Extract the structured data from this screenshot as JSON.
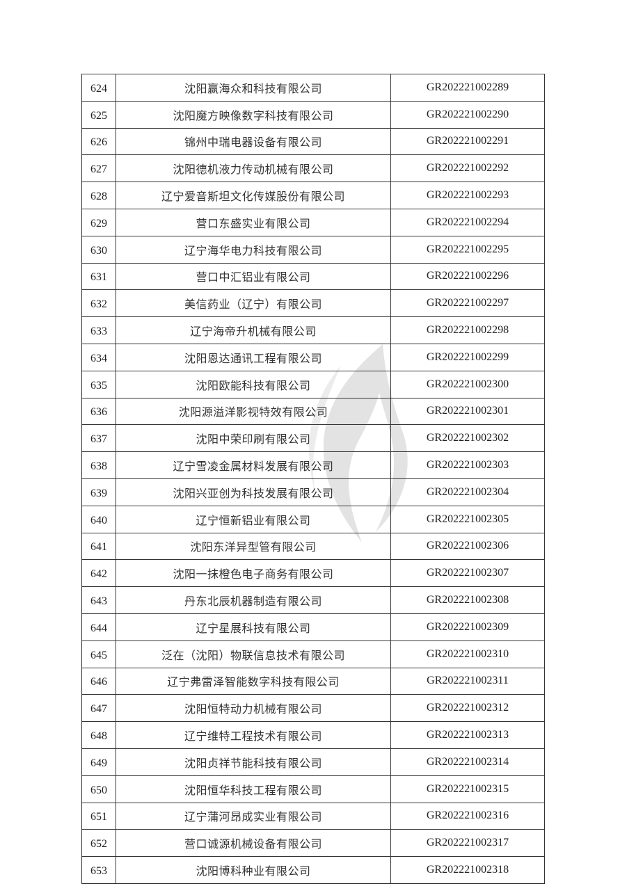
{
  "watermark": {
    "icon": "flame-logo-icon",
    "color": "#e3e3e3"
  },
  "table": {
    "rows": [
      {
        "no": "624",
        "name": "沈阳赢海众和科技有限公司",
        "code": "GR202221002289"
      },
      {
        "no": "625",
        "name": "沈阳魔方映像数字科技有限公司",
        "code": "GR202221002290"
      },
      {
        "no": "626",
        "name": "锦州中瑞电器设备有限公司",
        "code": "GR202221002291"
      },
      {
        "no": "627",
        "name": "沈阳德机液力传动机械有限公司",
        "code": "GR202221002292"
      },
      {
        "no": "628",
        "name": "辽宁爱音斯坦文化传媒股份有限公司",
        "code": "GR202221002293"
      },
      {
        "no": "629",
        "name": "营口东盛实业有限公司",
        "code": "GR202221002294"
      },
      {
        "no": "630",
        "name": "辽宁海华电力科技有限公司",
        "code": "GR202221002295"
      },
      {
        "no": "631",
        "name": "营口中汇铝业有限公司",
        "code": "GR202221002296"
      },
      {
        "no": "632",
        "name": "美信药业（辽宁）有限公司",
        "code": "GR202221002297"
      },
      {
        "no": "633",
        "name": "辽宁海帝升机械有限公司",
        "code": "GR202221002298"
      },
      {
        "no": "634",
        "name": "沈阳恩达通讯工程有限公司",
        "code": "GR202221002299"
      },
      {
        "no": "635",
        "name": "沈阳欧能科技有限公司",
        "code": "GR202221002300"
      },
      {
        "no": "636",
        "name": "沈阳源溢洋影视特效有限公司",
        "code": "GR202221002301"
      },
      {
        "no": "637",
        "name": "沈阳中荣印刷有限公司",
        "code": "GR202221002302"
      },
      {
        "no": "638",
        "name": "辽宁雪凌金属材料发展有限公司",
        "code": "GR202221002303"
      },
      {
        "no": "639",
        "name": "沈阳兴亚创为科技发展有限公司",
        "code": "GR202221002304"
      },
      {
        "no": "640",
        "name": "辽宁恒新铝业有限公司",
        "code": "GR202221002305"
      },
      {
        "no": "641",
        "name": "沈阳东洋异型管有限公司",
        "code": "GR202221002306"
      },
      {
        "no": "642",
        "name": "沈阳一抹橙色电子商务有限公司",
        "code": "GR202221002307"
      },
      {
        "no": "643",
        "name": "丹东北辰机器制造有限公司",
        "code": "GR202221002308"
      },
      {
        "no": "644",
        "name": "辽宁星展科技有限公司",
        "code": "GR202221002309"
      },
      {
        "no": "645",
        "name": "泛在（沈阳）物联信息技术有限公司",
        "code": "GR202221002310"
      },
      {
        "no": "646",
        "name": "辽宁弗雷泽智能数字科技有限公司",
        "code": "GR202221002311"
      },
      {
        "no": "647",
        "name": "沈阳恒特动力机械有限公司",
        "code": "GR202221002312"
      },
      {
        "no": "648",
        "name": "辽宁维特工程技术有限公司",
        "code": "GR202221002313"
      },
      {
        "no": "649",
        "name": "沈阳贞祥节能科技有限公司",
        "code": "GR202221002314"
      },
      {
        "no": "650",
        "name": "沈阳恒华科技工程有限公司",
        "code": "GR202221002315"
      },
      {
        "no": "651",
        "name": "辽宁蒲河昂成实业有限公司",
        "code": "GR202221002316"
      },
      {
        "no": "652",
        "name": "营口诚源机械设备有限公司",
        "code": "GR202221002317"
      },
      {
        "no": "653",
        "name": "沈阳博科种业有限公司",
        "code": "GR202221002318"
      }
    ]
  }
}
